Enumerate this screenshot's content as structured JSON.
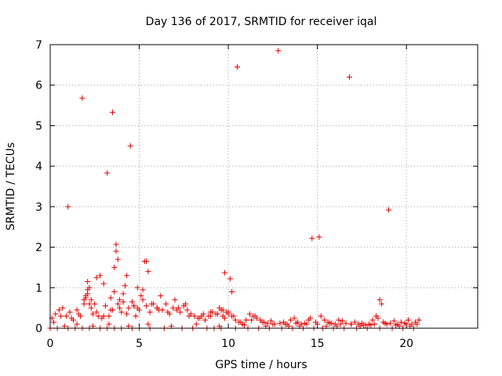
{
  "chart_data": {
    "type": "scatter",
    "title": "Day 136 of 2017, SRMTID for receiver iqal",
    "xlabel": "GPS time / hours",
    "ylabel": "SRMTID / TECUs",
    "xlim": [
      0,
      24
    ],
    "ylim": [
      0,
      7
    ],
    "xticks": [
      0,
      5,
      10,
      15,
      20
    ],
    "yticks": [
      0,
      1,
      2,
      3,
      4,
      5,
      6,
      7
    ],
    "xtick_labels": [
      "0",
      "5",
      "10",
      "15",
      "20"
    ],
    "ytick_labels": [
      "0",
      "1",
      "2",
      "3",
      "4",
      "5",
      "6",
      "7"
    ],
    "grid": true,
    "marker": "+",
    "color": "#e00000",
    "series": [
      {
        "name": "SRMTID",
        "x": [
          1.0,
          1.8,
          3.2,
          3.5,
          4.5,
          10.5,
          12.8,
          16.8,
          14.7,
          15.1,
          19.0,
          3.7,
          3.7,
          3.8,
          3.6,
          5.4,
          5.5,
          5.3,
          9.8,
          10.1,
          10.2,
          2.6,
          2.8,
          3.0,
          2.1,
          2.2,
          4.3,
          4.2,
          4.9,
          5.2,
          6.2,
          7.0,
          7.6,
          18.5,
          18.6,
          0.1,
          0.3,
          0.5,
          0.7,
          0.9,
          1.1,
          1.3,
          1.5,
          1.7,
          1.9,
          2.0,
          2.1,
          2.3,
          2.4,
          2.5,
          2.7,
          2.9,
          3.1,
          3.3,
          3.4,
          3.6,
          3.8,
          3.9,
          4.0,
          4.1,
          4.4,
          4.6,
          4.7,
          4.8,
          5.0,
          5.1,
          5.6,
          5.8,
          6.0,
          6.3,
          6.5,
          6.7,
          6.9,
          7.1,
          7.3,
          7.5,
          7.7,
          7.9,
          8.1,
          8.3,
          8.5,
          8.7,
          8.9,
          9.1,
          9.3,
          9.5,
          9.6,
          9.7,
          9.9,
          10.0,
          10.3,
          10.4,
          10.6,
          10.8,
          11.0,
          11.2,
          11.4,
          11.6,
          11.8,
          12.0,
          12.2,
          12.4,
          12.6,
          12.9,
          13.1,
          13.3,
          13.5,
          13.7,
          13.9,
          14.1,
          14.3,
          14.5,
          14.6,
          14.9,
          15.2,
          15.4,
          15.6,
          15.8,
          16.0,
          16.2,
          16.4,
          16.6,
          16.9,
          17.1,
          17.3,
          17.5,
          17.7,
          17.9,
          18.1,
          18.3,
          18.4,
          18.7,
          18.9,
          19.1,
          19.3,
          19.5,
          19.7,
          19.9,
          20.1,
          20.3,
          20.5,
          20.7,
          0.2,
          0.6,
          1.2,
          1.6,
          2.2,
          2.6,
          3.0,
          3.5,
          3.9,
          4.3,
          4.9,
          5.4,
          6.1,
          6.6,
          7.2,
          7.8,
          8.4,
          9.0,
          9.4,
          9.8,
          10.2,
          10.7,
          11.3,
          11.9,
          12.5,
          13.2,
          13.8,
          14.4,
          15.0,
          15.7,
          16.3,
          16.9,
          17.6,
          18.2,
          18.8,
          19.4,
          20.0,
          20.6,
          0.0,
          0.4,
          1.0,
          1.4,
          1.8,
          2.2,
          2.8,
          3.2,
          3.6,
          4.0,
          4.6,
          5.0,
          5.6,
          6.4,
          7.4,
          8.0,
          8.8,
          9.2,
          9.6,
          10.4,
          11.1,
          11.7,
          12.3,
          13.0,
          13.6,
          14.2,
          14.8,
          15.3,
          15.9,
          16.5,
          17.2,
          17.8,
          18.5,
          19.2,
          19.8,
          20.4,
          0.8,
          1.5,
          2.4,
          3.3,
          4.4,
          5.5,
          6.8,
          8.2,
          9.5,
          10.9,
          12.1,
          13.4,
          14.0,
          15.5,
          16.1,
          17.4,
          18.0,
          19.6,
          20.2,
          1.9,
          2.0,
          2.1,
          2.3,
          3.4,
          4.1,
          4.7,
          5.2,
          5.7,
          6.0,
          8.6,
          9.0,
          9.7,
          10.0,
          11.5
        ],
        "y": [
          3.0,
          5.68,
          3.83,
          5.33,
          4.5,
          6.45,
          6.85,
          6.2,
          2.22,
          2.25,
          2.92,
          2.07,
          1.9,
          1.7,
          1.5,
          1.65,
          1.4,
          1.65,
          1.37,
          1.22,
          0.9,
          1.25,
          1.3,
          1.1,
          1.15,
          1.0,
          1.3,
          1.05,
          1.0,
          0.95,
          0.8,
          0.7,
          0.6,
          0.7,
          0.6,
          0.25,
          0.35,
          0.45,
          0.5,
          0.3,
          0.4,
          0.2,
          0.45,
          0.3,
          0.7,
          0.8,
          0.95,
          0.5,
          0.35,
          0.6,
          0.3,
          0.25,
          0.55,
          0.3,
          0.45,
          0.9,
          0.6,
          0.7,
          0.4,
          0.85,
          0.5,
          0.65,
          0.55,
          0.3,
          0.45,
          0.8,
          0.4,
          0.6,
          0.5,
          0.45,
          0.6,
          0.35,
          0.5,
          0.45,
          0.4,
          0.55,
          0.45,
          0.35,
          0.3,
          0.25,
          0.3,
          0.2,
          0.3,
          0.4,
          0.35,
          0.5,
          0.45,
          0.3,
          0.4,
          0.35,
          0.3,
          0.2,
          0.15,
          0.1,
          0.2,
          0.35,
          0.3,
          0.25,
          0.2,
          0.15,
          0.12,
          0.18,
          0.1,
          0.12,
          0.15,
          0.1,
          0.2,
          0.25,
          0.15,
          0.1,
          0.12,
          0.2,
          0.25,
          0.15,
          0.3,
          0.2,
          0.15,
          0.12,
          0.1,
          0.2,
          0.18,
          0.12,
          0.1,
          0.15,
          0.1,
          0.12,
          0.08,
          0.1,
          0.2,
          0.3,
          0.25,
          0.15,
          0.1,
          0.12,
          0.18,
          0.1,
          0.15,
          0.12,
          0.2,
          0.1,
          0.15,
          0.2,
          0.15,
          0.3,
          0.25,
          0.35,
          0.6,
          0.4,
          0.3,
          0.45,
          0.5,
          0.35,
          0.5,
          0.55,
          0.45,
          0.4,
          0.5,
          0.3,
          0.25,
          0.3,
          0.35,
          0.25,
          0.3,
          0.15,
          0.2,
          0.15,
          0.1,
          0.1,
          0.12,
          0.1,
          0.1,
          0.12,
          0.1,
          0.1,
          0.08,
          0.1,
          0.12,
          0.08,
          0.1,
          0.1,
          0.0,
          0.0,
          0.0,
          0.0,
          0.0,
          0.0,
          0.0,
          0.0,
          0.0,
          0.0,
          0.0,
          0.0,
          0.0,
          0.0,
          0.0,
          0.0,
          0.0,
          0.0,
          0.0,
          0.0,
          0.0,
          0.0,
          0.0,
          0.0,
          0.0,
          0.0,
          0.0,
          0.0,
          0.0,
          0.0,
          0.0,
          0.0,
          0.0,
          0.0,
          0.0,
          0.0,
          0.05,
          0.1,
          0.05,
          0.1,
          0.05,
          0.1,
          0.05,
          0.1,
          0.05,
          0.08,
          0.05,
          0.05,
          0.05,
          0.05,
          0.05,
          0.05,
          0.08,
          0.05,
          0.05,
          0.6,
          0.75,
          0.85,
          0.7,
          0.75,
          0.65,
          0.55,
          0.7,
          0.6,
          0.5,
          0.35,
          0.4,
          0.45,
          0.4,
          0.3
        ]
      }
    ]
  }
}
